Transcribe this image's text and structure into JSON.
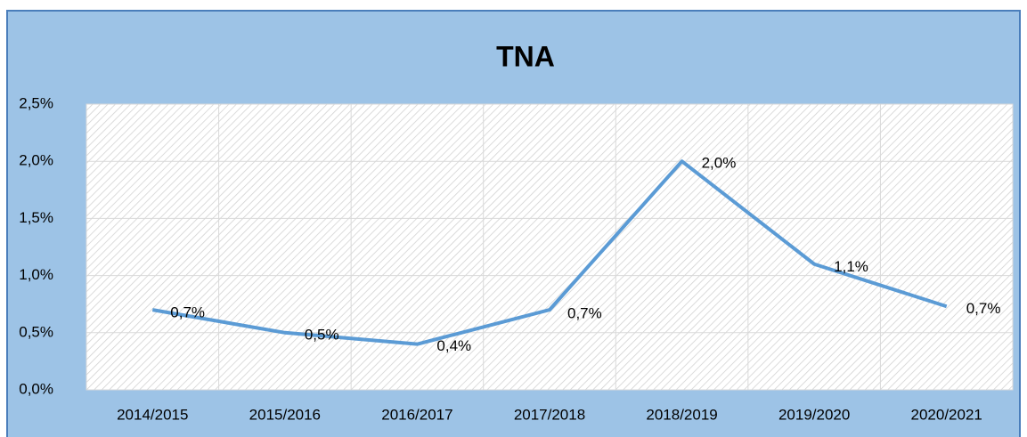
{
  "chart_data": {
    "type": "line",
    "title": "TNA",
    "categories": [
      "2014/2015",
      "2015/2016",
      "2016/2017",
      "2017/2018",
      "2018/2019",
      "2019/2020",
      "2020/2021"
    ],
    "series": [
      {
        "name": "TNA",
        "color": "#5b9bd5",
        "values": [
          0.7,
          0.5,
          0.4,
          0.7,
          2.0,
          1.1,
          0.73
        ],
        "value_labels": [
          "0,7%",
          "0,5%",
          "0,4%",
          "0,7%",
          "2,0%",
          "1,1%",
          "0,7%"
        ]
      }
    ],
    "ylim": [
      0,
      2.5
    ],
    "yticks": [
      {
        "value": 0,
        "label": "0,0%"
      },
      {
        "value": 0.5,
        "label": "0,5%"
      },
      {
        "value": 1.0,
        "label": "1,0%"
      },
      {
        "value": 1.5,
        "label": "1,5%"
      },
      {
        "value": 2.0,
        "label": "2,0%"
      },
      {
        "value": 2.5,
        "label": "2,5%"
      }
    ],
    "grid": true
  }
}
